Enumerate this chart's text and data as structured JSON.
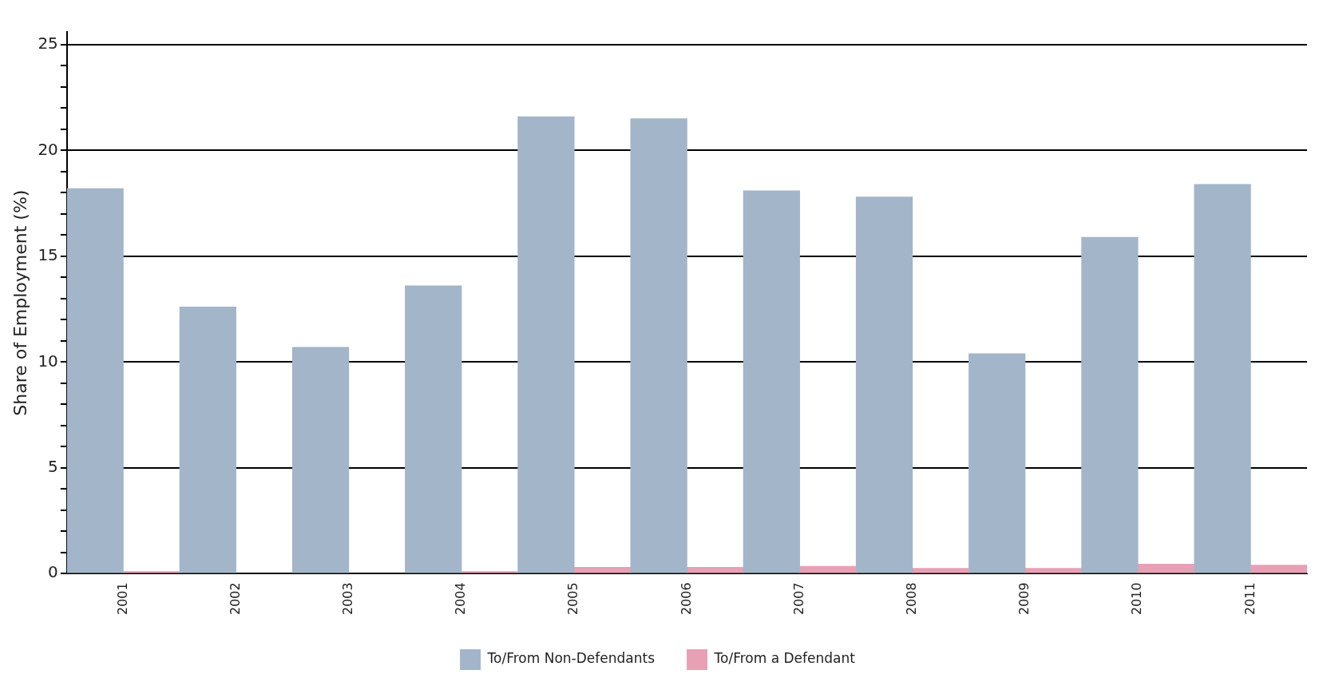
{
  "chart_data": {
    "type": "bar",
    "ylabel": "Share of Employment (%)",
    "categories": [
      "2001",
      "2002",
      "2003",
      "2004",
      "2005",
      "2006",
      "2007",
      "2008",
      "2009",
      "2010",
      "2011"
    ],
    "series": [
      {
        "name": "To/From Non-Defendants",
        "color": "#a3b5c9",
        "values": [
          18.2,
          12.6,
          10.7,
          13.6,
          21.6,
          21.5,
          18.1,
          17.8,
          10.4,
          15.9,
          18.4
        ]
      },
      {
        "name": "To/From a Defendant",
        "color": "#e8a0b4",
        "values": [
          0.1,
          null,
          null,
          0.1,
          0.3,
          0.3,
          0.35,
          0.25,
          0.25,
          0.45,
          0.4
        ]
      }
    ],
    "ylim": [
      0,
      25.6
    ],
    "yticks": [
      0,
      {
        "value": 1,
        "label": null
      },
      {
        "value": 2,
        "label": null
      },
      {
        "value": 3,
        "label": null
      },
      {
        "value": 4,
        "label": null
      },
      5,
      {
        "value": 6,
        "label": null
      },
      {
        "value": 7,
        "label": null
      },
      {
        "value": 8,
        "label": null
      },
      {
        "value": 9,
        "label": null
      },
      10,
      {
        "value": 11,
        "label": null
      },
      {
        "value": 12,
        "label": null
      },
      {
        "value": 13,
        "label": null
      },
      {
        "value": 14,
        "label": null
      },
      15,
      {
        "value": 16,
        "label": null
      },
      {
        "value": 17,
        "label": null
      },
      {
        "value": 18,
        "label": null
      },
      {
        "value": 19,
        "label": null
      },
      20,
      {
        "value": 21,
        "label": null
      },
      {
        "value": 22,
        "label": null
      },
      {
        "value": 23,
        "label": null
      },
      {
        "value": 24,
        "label": null
      },
      25
    ],
    "grid": "y",
    "legend": "bottom"
  }
}
